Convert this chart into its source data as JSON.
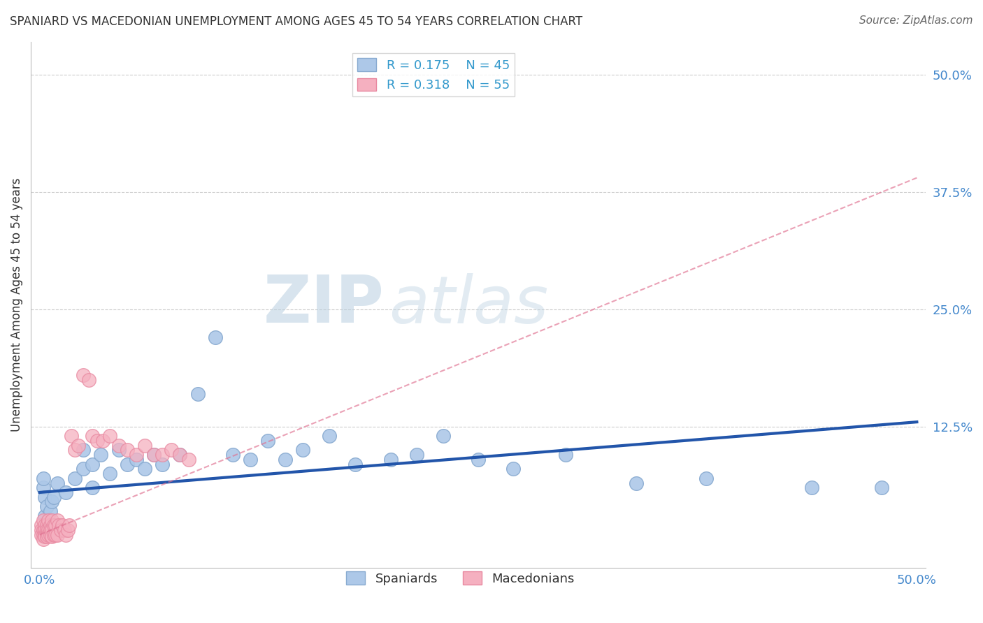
{
  "title": "SPANIARD VS MACEDONIAN UNEMPLOYMENT AMONG AGES 45 TO 54 YEARS CORRELATION CHART",
  "source": "Source: ZipAtlas.com",
  "ylabel": "Unemployment Among Ages 45 to 54 years",
  "xlim": [
    -0.005,
    0.505
  ],
  "ylim": [
    -0.025,
    0.535
  ],
  "spaniards_R": 0.175,
  "spaniards_N": 45,
  "macedonians_R": 0.318,
  "macedonians_N": 55,
  "spaniard_color": "#adc8e8",
  "macedonian_color": "#f5b0c0",
  "macedonian_edge_color": "#e888a0",
  "spaniard_edge_color": "#88aad0",
  "spaniard_line_color": "#2255aa",
  "macedonian_line_color": "#e07090",
  "background_color": "#ffffff",
  "grid_color": "#cccccc",
  "ytick_vals": [
    0.0,
    0.125,
    0.25,
    0.375,
    0.5
  ],
  "ytick_labels": [
    "",
    "12.5%",
    "25.0%",
    "37.5%",
    "50.0%"
  ],
  "xtick_vals": [
    0.0,
    0.5
  ],
  "xtick_labels": [
    "0.0%",
    "50.0%"
  ],
  "spaniards_x": [
    0.002,
    0.003,
    0.004,
    0.003,
    0.005,
    0.004,
    0.006,
    0.002,
    0.007,
    0.008,
    0.01,
    0.015,
    0.02,
    0.025,
    0.03,
    0.025,
    0.03,
    0.035,
    0.04,
    0.045,
    0.05,
    0.055,
    0.06,
    0.065,
    0.07,
    0.08,
    0.09,
    0.1,
    0.11,
    0.12,
    0.13,
    0.14,
    0.15,
    0.165,
    0.18,
    0.2,
    0.215,
    0.23,
    0.25,
    0.27,
    0.3,
    0.34,
    0.38,
    0.44,
    0.48
  ],
  "spaniards_y": [
    0.06,
    0.03,
    0.02,
    0.05,
    0.025,
    0.04,
    0.035,
    0.07,
    0.045,
    0.05,
    0.065,
    0.055,
    0.07,
    0.08,
    0.06,
    0.1,
    0.085,
    0.095,
    0.075,
    0.1,
    0.085,
    0.09,
    0.08,
    0.095,
    0.085,
    0.095,
    0.16,
    0.22,
    0.095,
    0.09,
    0.11,
    0.09,
    0.1,
    0.115,
    0.085,
    0.09,
    0.095,
    0.115,
    0.09,
    0.08,
    0.095,
    0.065,
    0.07,
    0.06,
    0.06
  ],
  "macedonians_x": [
    0.001,
    0.001,
    0.001,
    0.002,
    0.002,
    0.002,
    0.002,
    0.003,
    0.003,
    0.003,
    0.003,
    0.004,
    0.004,
    0.004,
    0.004,
    0.005,
    0.005,
    0.005,
    0.006,
    0.006,
    0.006,
    0.007,
    0.007,
    0.007,
    0.008,
    0.008,
    0.009,
    0.009,
    0.01,
    0.01,
    0.011,
    0.012,
    0.013,
    0.014,
    0.015,
    0.016,
    0.017,
    0.018,
    0.02,
    0.022,
    0.025,
    0.028,
    0.03,
    0.033,
    0.036,
    0.04,
    0.045,
    0.05,
    0.055,
    0.06,
    0.065,
    0.07,
    0.075,
    0.08,
    0.085
  ],
  "macedonians_y": [
    0.02,
    0.015,
    0.01,
    0.025,
    0.015,
    0.01,
    0.005,
    0.02,
    0.015,
    0.01,
    0.008,
    0.02,
    0.015,
    0.01,
    0.008,
    0.025,
    0.015,
    0.01,
    0.02,
    0.015,
    0.01,
    0.025,
    0.015,
    0.008,
    0.02,
    0.01,
    0.02,
    0.01,
    0.025,
    0.01,
    0.02,
    0.015,
    0.02,
    0.015,
    0.01,
    0.015,
    0.02,
    0.115,
    0.1,
    0.105,
    0.18,
    0.175,
    0.115,
    0.11,
    0.11,
    0.115,
    0.105,
    0.1,
    0.095,
    0.105,
    0.095,
    0.095,
    0.1,
    0.095,
    0.09
  ],
  "span_line_x0": 0.0,
  "span_line_x1": 0.5,
  "span_line_y0": 0.055,
  "span_line_y1": 0.13,
  "mace_line_x0": 0.0,
  "mace_line_x1": 0.5,
  "mace_line_y0": 0.01,
  "mace_line_y1": 0.39
}
